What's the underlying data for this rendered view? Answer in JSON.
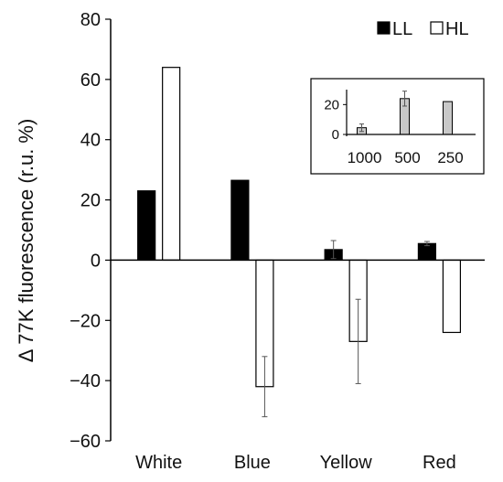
{
  "chart_data": [
    {
      "type": "bar",
      "title": "",
      "xlabel": "",
      "ylabel": "Δ 77K fluorescence (r.u. %)",
      "ylim": [
        -60,
        80
      ],
      "yticks": [
        80,
        60,
        40,
        20,
        0,
        -20,
        -40,
        -60
      ],
      "ytick_labels": [
        "80",
        "60",
        "40",
        "20",
        "0",
        "−20",
        "−40",
        "−60"
      ],
      "categories": [
        "White",
        "Blue",
        "Yellow",
        "Red"
      ],
      "legend": {
        "position": "top-right"
      },
      "grid": false,
      "series": [
        {
          "name": "LL",
          "fill": "#000000",
          "values": [
            23,
            26.5,
            3.5,
            5.5
          ],
          "errors": [
            0,
            0,
            3,
            0.7
          ]
        },
        {
          "name": "HL",
          "fill": "#ffffff",
          "values": [
            64,
            -42,
            -27,
            -24
          ],
          "errors": [
            0,
            10,
            14,
            0
          ]
        }
      ]
    },
    {
      "type": "bar",
      "title": "",
      "xlabel": "",
      "ylabel": "",
      "ylim": [
        0,
        30
      ],
      "yticks": [
        0,
        20
      ],
      "ytick_labels": [
        "0",
        "20"
      ],
      "categories": [
        "1000",
        "500",
        "250"
      ],
      "grid": false,
      "series": [
        {
          "values": [
            4.5,
            24,
            22
          ],
          "errors": [
            2.5,
            5,
            0
          ],
          "fill": "#c8c8c8"
        }
      ]
    }
  ]
}
